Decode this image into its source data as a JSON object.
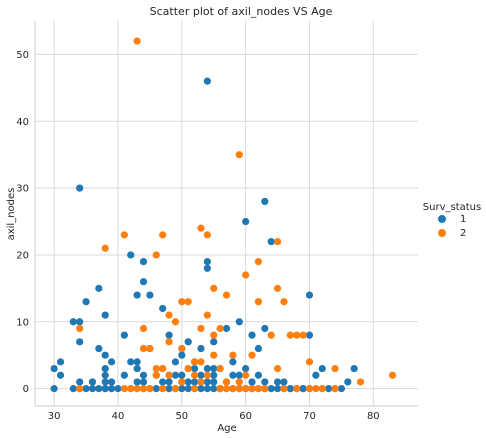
{
  "chart_data": {
    "type": "scatter",
    "title": "Scatter plot of axil_nodes VS Age",
    "xlabel": "Age",
    "ylabel": "axil_nodes",
    "xlim": [
      27,
      87
    ],
    "ylim": [
      -2.6,
      55
    ],
    "xticks": [
      30,
      40,
      50,
      60,
      70,
      80
    ],
    "yticks": [
      0,
      10,
      20,
      30,
      40,
      50
    ],
    "grid": true,
    "legend": {
      "title": "Surv_status",
      "placement": "right"
    },
    "series": [
      {
        "name": "1",
        "color": "#1f77b4",
        "x": [
          30,
          30,
          31,
          31,
          33,
          33,
          34,
          34,
          34,
          34,
          34,
          35,
          35,
          36,
          36,
          37,
          37,
          37,
          38,
          38,
          38,
          38,
          38,
          38,
          38,
          39,
          39,
          39,
          40,
          41,
          41,
          42,
          42,
          42,
          43,
          43,
          43,
          43,
          43,
          44,
          44,
          44,
          44,
          44,
          45,
          45,
          45,
          46,
          46,
          47,
          47,
          47,
          47,
          48,
          48,
          48,
          48,
          49,
          49,
          49,
          50,
          50,
          50,
          50,
          50,
          51,
          51,
          51,
          51,
          52,
          52,
          52,
          52,
          53,
          53,
          53,
          53,
          54,
          54,
          54,
          54,
          54,
          54,
          55,
          55,
          55,
          55,
          55,
          56,
          56,
          56,
          57,
          57,
          57,
          58,
          58,
          58,
          59,
          59,
          59,
          60,
          60,
          60,
          61,
          61,
          61,
          62,
          62,
          62,
          63,
          63,
          63,
          63,
          64,
          64,
          65,
          65,
          66,
          66,
          67,
          67,
          68,
          69,
          69,
          70,
          70,
          70,
          71,
          72,
          72,
          73,
          74,
          75,
          76,
          77
        ],
        "y": [
          0,
          3,
          2,
          4,
          0,
          10,
          30,
          10,
          7,
          1,
          0,
          0,
          13,
          0,
          1,
          6,
          15,
          0,
          0,
          1,
          2,
          3,
          5,
          11,
          0,
          4,
          1,
          0,
          0,
          8,
          2,
          20,
          4,
          0,
          0,
          1,
          14,
          3,
          4,
          0,
          1,
          16,
          19,
          2,
          0,
          14,
          6,
          0,
          2,
          0,
          1,
          12,
          3,
          0,
          1,
          2,
          8,
          0,
          2,
          4,
          0,
          1,
          2,
          6,
          5,
          0,
          1,
          7,
          3,
          0,
          1,
          3,
          4,
          0,
          2,
          1,
          6,
          46,
          19,
          18,
          3,
          0,
          1,
          0,
          1,
          2,
          7,
          3,
          0,
          0,
          3,
          0,
          1,
          9,
          0,
          2,
          4,
          0,
          2,
          10,
          0,
          25,
          3,
          0,
          8,
          1,
          0,
          6,
          2,
          0,
          28,
          9,
          1,
          0,
          22,
          1,
          0,
          0,
          1,
          0,
          0,
          0,
          0,
          0,
          14,
          8,
          0,
          2,
          0,
          3,
          0,
          0,
          0,
          1,
          3
        ]
      },
      {
        "name": "2",
        "color": "#ff7f0e",
        "x": [
          34,
          34,
          38,
          41,
          41,
          42,
          43,
          43,
          44,
          44,
          44,
          45,
          45,
          46,
          46,
          46,
          47,
          47,
          47,
          48,
          48,
          48,
          49,
          49,
          50,
          50,
          50,
          51,
          51,
          52,
          52,
          52,
          53,
          53,
          53,
          53,
          54,
          54,
          54,
          55,
          55,
          55,
          56,
          56,
          56,
          57,
          57,
          57,
          58,
          58,
          59,
          59,
          59,
          60,
          60,
          60,
          61,
          61,
          62,
          62,
          62,
          63,
          64,
          65,
          65,
          65,
          66,
          66,
          67,
          68,
          68,
          69,
          70,
          70,
          70,
          71,
          72,
          74,
          74,
          78,
          83
        ],
        "y": [
          9,
          0,
          21,
          23,
          0,
          0,
          52,
          0,
          9,
          6,
          0,
          6,
          0,
          20,
          3,
          2,
          23,
          0,
          3,
          11,
          2,
          7,
          10,
          0,
          13,
          1,
          6,
          13,
          3,
          2,
          4,
          0,
          24,
          9,
          4,
          1,
          23,
          11,
          2,
          15,
          5,
          8,
          9,
          3,
          0,
          14,
          1,
          0,
          5,
          0,
          35,
          1,
          0,
          17,
          2,
          0,
          5,
          0,
          19,
          13,
          0,
          0,
          8,
          22,
          15,
          3,
          13,
          0,
          8,
          0,
          8,
          8,
          4,
          0,
          0,
          0,
          0,
          3,
          0,
          1,
          2
        ]
      }
    ]
  }
}
